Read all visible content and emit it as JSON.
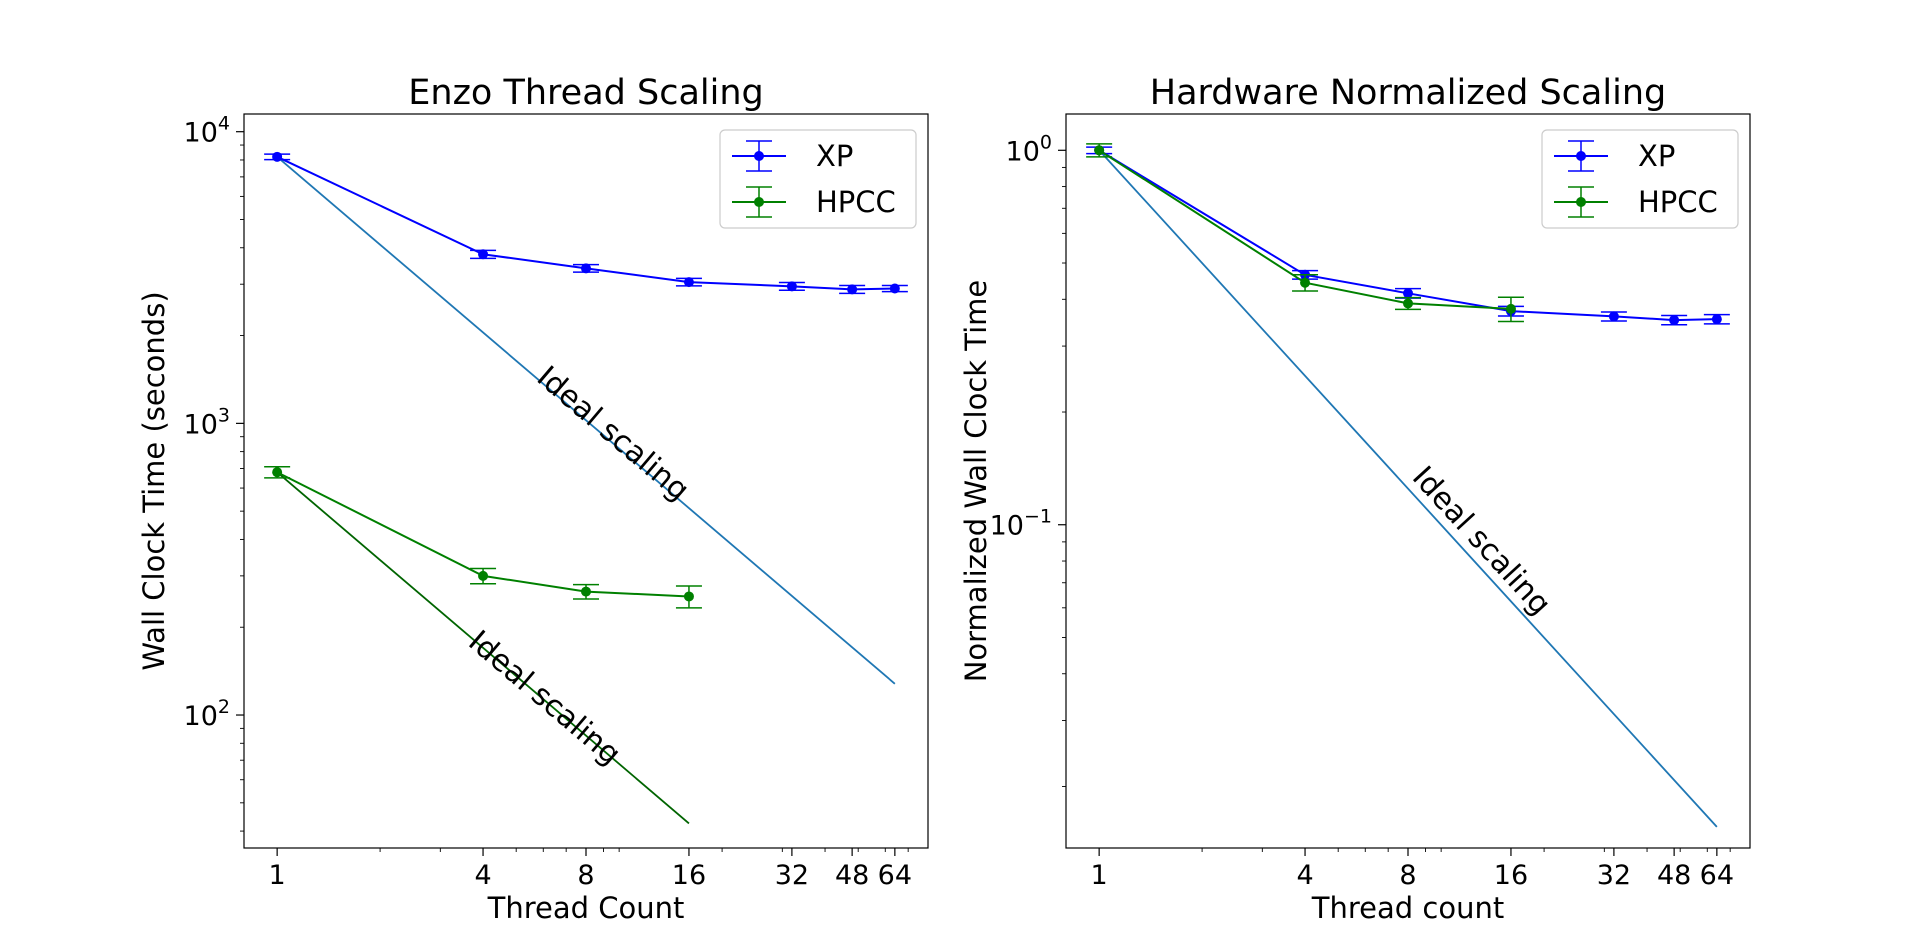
{
  "chart_data": [
    {
      "type": "line",
      "title": "Enzo Thread Scaling",
      "xlabel": "Thread Count",
      "ylabel": "Wall Clock Time (seconds)",
      "xscale": "log",
      "yscale": "log",
      "xlim": [
        0.8,
        80
      ],
      "ylim": [
        35,
        11500
      ],
      "xticks": [
        1,
        4,
        8,
        16,
        32,
        48,
        64
      ],
      "xtick_labels": [
        "1",
        "4",
        "8",
        "16",
        "32",
        "48",
        "64"
      ],
      "yticks": [
        100,
        1000,
        10000
      ],
      "ytick_base": "10",
      "ytick_exps": [
        "2",
        "3",
        "4"
      ],
      "grid": false,
      "legend": "top-right",
      "series": [
        {
          "name": "XP",
          "color": "#0000ff",
          "x": [
            1,
            4,
            8,
            16,
            32,
            48,
            64
          ],
          "y": [
            8200,
            3800,
            3400,
            3050,
            2950,
            2880,
            2900
          ],
          "err": [
            180,
            120,
            100,
            90,
            90,
            90,
            70
          ]
        },
        {
          "name": "HPCC",
          "color": "#008000",
          "x": [
            1,
            4,
            8,
            16
          ],
          "y": [
            680,
            300,
            265,
            255
          ],
          "err": [
            30,
            18,
            15,
            22
          ]
        }
      ],
      "ideal_lines": [
        {
          "color": "#1f77b4",
          "x": [
            1,
            64
          ],
          "y": [
            8200,
            128
          ],
          "label": "Ideal scaling",
          "label_x": 9.2,
          "label_y": 870
        },
        {
          "color": "#006400",
          "x": [
            1,
            16
          ],
          "y": [
            680,
            42.5
          ],
          "label": "Ideal scaling",
          "label_x": 5.8,
          "label_y": 108
        }
      ]
    },
    {
      "type": "line",
      "title": "Hardware Normalized Scaling",
      "xlabel": "Thread count",
      "ylabel": "Normalized Wall Clock Time",
      "xscale": "log",
      "yscale": "log",
      "xlim": [
        0.8,
        80
      ],
      "ylim": [
        0.0137,
        1.25
      ],
      "xticks": [
        1,
        4,
        8,
        16,
        32,
        48,
        64
      ],
      "xtick_labels": [
        "1",
        "4",
        "8",
        "16",
        "32",
        "48",
        "64"
      ],
      "yticks": [
        0.1,
        1
      ],
      "ytick_base": "10",
      "ytick_exps": [
        "−1",
        "0"
      ],
      "grid": false,
      "legend": "top-right",
      "series": [
        {
          "name": "XP",
          "color": "#0000ff",
          "x": [
            1,
            4,
            8,
            16,
            32,
            48,
            64
          ],
          "y": [
            1.0,
            0.465,
            0.415,
            0.372,
            0.36,
            0.352,
            0.354
          ],
          "err": [
            0.02,
            0.012,
            0.012,
            0.011,
            0.01,
            0.01,
            0.01
          ]
        },
        {
          "name": "HPCC",
          "color": "#008000",
          "x": [
            1,
            4,
            8,
            16
          ],
          "y": [
            1.0,
            0.443,
            0.39,
            0.377
          ],
          "err": [
            0.04,
            0.022,
            0.014,
            0.028
          ]
        }
      ],
      "ideal_lines": [
        {
          "color": "#1f77b4",
          "x": [
            1,
            64
          ],
          "y": [
            1.0,
            0.0156
          ],
          "label": "Ideal scaling",
          "label_x": 12.5,
          "label_y": 0.087
        }
      ]
    }
  ]
}
